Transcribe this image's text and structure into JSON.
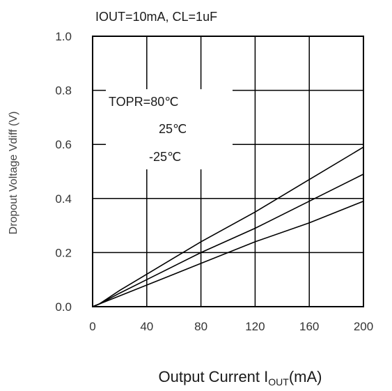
{
  "chart_data": {
    "type": "line",
    "subtitle": "IOUT=10mA, CL=1uF",
    "xlabel": {
      "main": "Output Current I",
      "sub": "OUT",
      "unit": "(mA)"
    },
    "ylabel": "Dropout Voltage Vdiff (V)",
    "xlim": [
      0,
      200
    ],
    "ylim": [
      0.0,
      1.0
    ],
    "xticks": [
      "0",
      "40",
      "80",
      "120",
      "160",
      "200"
    ],
    "yticks": [
      "0.0",
      "0.2",
      "0.4",
      "0.6",
      "0.8",
      "1.0"
    ],
    "grid": true,
    "annotations": [
      "TOPR=80℃",
      "25℃",
      "-25℃"
    ],
    "series": [
      {
        "values": [
          [
            0,
            0
          ],
          [
            5,
            0.01
          ],
          [
            20,
            0.06
          ],
          [
            40,
            0.12
          ],
          [
            80,
            0.24
          ],
          [
            120,
            0.35
          ],
          [
            160,
            0.47
          ],
          [
            200,
            0.59
          ]
        ]
      },
      {
        "values": [
          [
            0,
            0
          ],
          [
            5,
            0.01
          ],
          [
            20,
            0.05
          ],
          [
            40,
            0.1
          ],
          [
            80,
            0.2
          ],
          [
            120,
            0.29
          ],
          [
            160,
            0.39
          ],
          [
            200,
            0.49
          ]
        ]
      },
      {
        "values": [
          [
            0,
            0
          ],
          [
            5,
            0.01
          ],
          [
            20,
            0.04
          ],
          [
            40,
            0.08
          ],
          [
            80,
            0.16
          ],
          [
            120,
            0.24
          ],
          [
            160,
            0.31
          ],
          [
            200,
            0.39
          ]
        ]
      }
    ],
    "line_color": "#000000"
  }
}
